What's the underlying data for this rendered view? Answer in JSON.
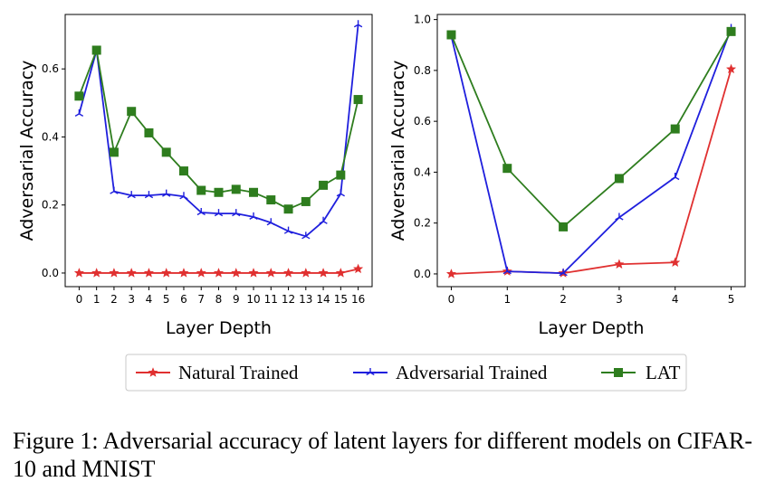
{
  "chart_data": [
    {
      "type": "line",
      "xlabel": "Layer Depth",
      "ylabel": "Adversarial Accuracy",
      "x": [
        0,
        1,
        2,
        3,
        4,
        5,
        6,
        7,
        8,
        9,
        10,
        11,
        12,
        13,
        14,
        15,
        16
      ],
      "xticks": [
        "0",
        "1",
        "2",
        "3",
        "4",
        "5",
        "6",
        "7",
        "8",
        "9",
        "10",
        "11",
        "12",
        "13",
        "14",
        "15",
        "16"
      ],
      "yticks": [
        0.0,
        0.2,
        0.4,
        0.6
      ],
      "ytick_labels": [
        "0.0",
        "0.2",
        "0.4",
        "0.6"
      ],
      "xlim": [
        -0.8,
        16.8
      ],
      "ylim": [
        -0.04,
        0.76
      ],
      "series": [
        {
          "name": "Natural Trained",
          "color": "#e03030",
          "marker": "star",
          "values": [
            0.0,
            0.0,
            0.0,
            0.0,
            0.0,
            0.0,
            0.0,
            0.0,
            0.0,
            0.0,
            0.0,
            0.0,
            0.0,
            0.0,
            0.0,
            0.0,
            0.012
          ]
        },
        {
          "name": "Adversarial Trained",
          "color": "#1f1fdd",
          "marker": "tri",
          "values": [
            0.468,
            0.655,
            0.24,
            0.228,
            0.228,
            0.232,
            0.225,
            0.178,
            0.175,
            0.175,
            0.165,
            0.148,
            0.123,
            0.108,
            0.152,
            0.233,
            0.73
          ]
        },
        {
          "name": "LAT",
          "color": "#2e7d1e",
          "marker": "square",
          "values": [
            0.52,
            0.655,
            0.355,
            0.475,
            0.412,
            0.355,
            0.3,
            0.243,
            0.237,
            0.246,
            0.237,
            0.215,
            0.188,
            0.21,
            0.258,
            0.288,
            0.51
          ]
        }
      ]
    },
    {
      "type": "line",
      "xlabel": "Layer Depth",
      "ylabel": "Adversarial Accuracy",
      "x": [
        0,
        1,
        2,
        3,
        4,
        5
      ],
      "xticks": [
        "0",
        "1",
        "2",
        "3",
        "4",
        "5"
      ],
      "yticks": [
        0.0,
        0.2,
        0.4,
        0.6,
        0.8,
        1.0
      ],
      "ytick_labels": [
        "0.0",
        "0.2",
        "0.4",
        "0.6",
        "0.8",
        "1.0"
      ],
      "xlim": [
        -0.25,
        5.25
      ],
      "ylim": [
        -0.05,
        1.02
      ],
      "series": [
        {
          "name": "Natural Trained",
          "color": "#e03030",
          "marker": "star",
          "values": [
            0.0,
            0.01,
            0.003,
            0.038,
            0.045,
            0.805
          ]
        },
        {
          "name": "Adversarial Trained",
          "color": "#1f1fdd",
          "marker": "tri",
          "values": [
            0.935,
            0.01,
            0.003,
            0.222,
            0.38,
            0.965
          ]
        },
        {
          "name": "LAT",
          "color": "#2e7d1e",
          "marker": "square",
          "values": [
            0.94,
            0.415,
            0.185,
            0.375,
            0.57,
            0.953
          ]
        }
      ]
    }
  ],
  "legend": {
    "placement": "bottom-center",
    "items": [
      "Natural Trained",
      "Adversarial Trained",
      "LAT"
    ]
  },
  "caption": "Figure 1: Adversarial accuracy of latent layers for different models on CIFAR-10 and MNIST"
}
